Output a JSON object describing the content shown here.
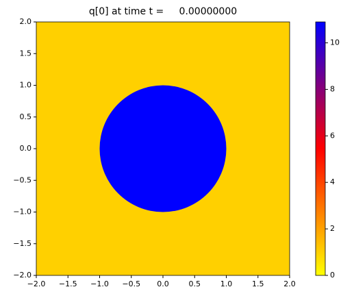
{
  "chart_data": {
    "type": "heatmap",
    "title": "q[0] at time t =     0.00000000",
    "xlim": [
      -2,
      2
    ],
    "ylim": [
      -2,
      2
    ],
    "xticks": [
      {
        "value": -2,
        "label": "−2.0"
      },
      {
        "value": -1.5,
        "label": "−1.5"
      },
      {
        "value": -1,
        "label": "−1.0"
      },
      {
        "value": -0.5,
        "label": "−0.5"
      },
      {
        "value": 0,
        "label": "0.0"
      },
      {
        "value": 0.5,
        "label": "0.5"
      },
      {
        "value": 1,
        "label": "1.0"
      },
      {
        "value": 1.5,
        "label": "1.5"
      },
      {
        "value": 2,
        "label": "2.0"
      }
    ],
    "yticks": [
      {
        "value": -2,
        "label": "−2.0"
      },
      {
        "value": -1.5,
        "label": "−1.5"
      },
      {
        "value": -1,
        "label": "−1.0"
      },
      {
        "value": -0.5,
        "label": "−0.5"
      },
      {
        "value": 0,
        "label": "0.0"
      },
      {
        "value": 0.5,
        "label": "0.5"
      },
      {
        "value": 1,
        "label": "1.0"
      },
      {
        "value": 1.5,
        "label": "1.5"
      },
      {
        "value": 2,
        "label": "2.0"
      }
    ],
    "background_value": 1,
    "disk": {
      "center": [
        0,
        0
      ],
      "radius": 1,
      "value": 10.9
    },
    "colormap": [
      "#ffff00",
      "#ff8000",
      "#ff0000",
      "#800080",
      "#0000ff"
    ],
    "clim": [
      0,
      10.9
    ],
    "cticks": [
      0,
      2,
      4,
      6,
      8,
      10
    ]
  }
}
